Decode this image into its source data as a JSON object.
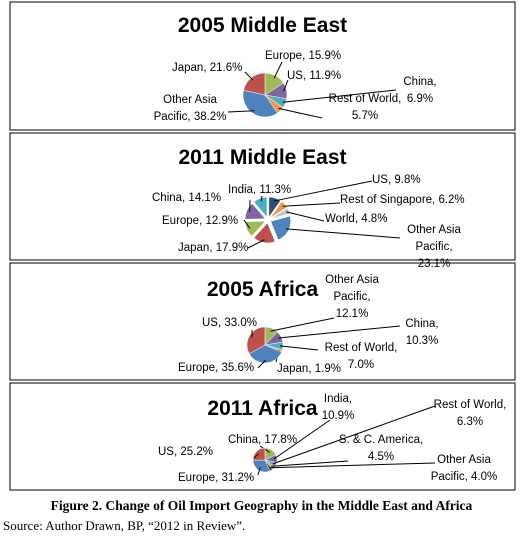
{
  "chart_data": [
    {
      "type": "pie",
      "title": "2005 Middle East",
      "labels": [
        "Europe, 15.9%",
        "US, 11.9%",
        "China, 6.9%",
        "Rest of World, 5.7%",
        "Other Asia Pacific, 38.2%",
        "Japan, 21.6%"
      ],
      "values": [
        15.9,
        11.9,
        6.9,
        5.7,
        38.2,
        21.6
      ],
      "colors": [
        "#9bbb59",
        "#8064a2",
        "#4bacc6",
        "#f79646",
        "#4f81bd",
        "#c0504d"
      ],
      "exploded": false
    },
    {
      "type": "pie",
      "title": "2011 Middle East",
      "labels": [
        "US, 9.8%",
        "Rest of Singapore, 6.2%",
        "World, 4.8%",
        "Other Asia Pacific, 23.1%",
        "Japan, 17.9%",
        "Europe, 12.9%",
        "China, 14.1%",
        "India, 11.3%"
      ],
      "values": [
        9.8,
        6.2,
        4.8,
        23.1,
        17.9,
        12.9,
        14.1,
        11.3
      ],
      "colors": [
        "#2c4d75",
        "#f79646",
        "#b7c6e0",
        "#4f81bd",
        "#c0504d",
        "#9bbb59",
        "#8064a2",
        "#4bacc6"
      ],
      "exploded": true
    },
    {
      "type": "pie",
      "title": "2005 Africa",
      "labels": [
        "Other Asia Pacific, 12.1%",
        "China, 10.3%",
        "Rest of World, 7.0%",
        "Japan, 1.9%",
        "Europe, 35.6%",
        "US, 33.0%"
      ],
      "values": [
        12.1,
        10.3,
        7.0,
        1.9,
        35.6,
        33.0
      ],
      "colors": [
        "#9bbb59",
        "#8064a2",
        "#4bacc6",
        "#f79646",
        "#4f81bd",
        "#c0504d"
      ],
      "exploded": false
    },
    {
      "type": "pie",
      "title": "2011 Africa",
      "labels": [
        "China, 17.8%",
        "India, 10.9%",
        "Rest of World, 6.3%",
        "S. & C. America, 4.5%",
        "Other Asia Pacific, 4.0%",
        "Europe, 31.2%",
        "US, 25.2%"
      ],
      "values": [
        17.8,
        10.9,
        6.3,
        4.5,
        4.0,
        31.2,
        25.2
      ],
      "colors": [
        "#9bbb59",
        "#8064a2",
        "#4bacc6",
        "#f79646",
        "#2c4d75",
        "#4f81bd",
        "#c0504d"
      ],
      "exploded": false
    }
  ],
  "caption": "Figure 2. Change of Oil Import Geography in the Middle East and Africa",
  "source": "Source: Author Drawn, BP, “2012 in Review”."
}
